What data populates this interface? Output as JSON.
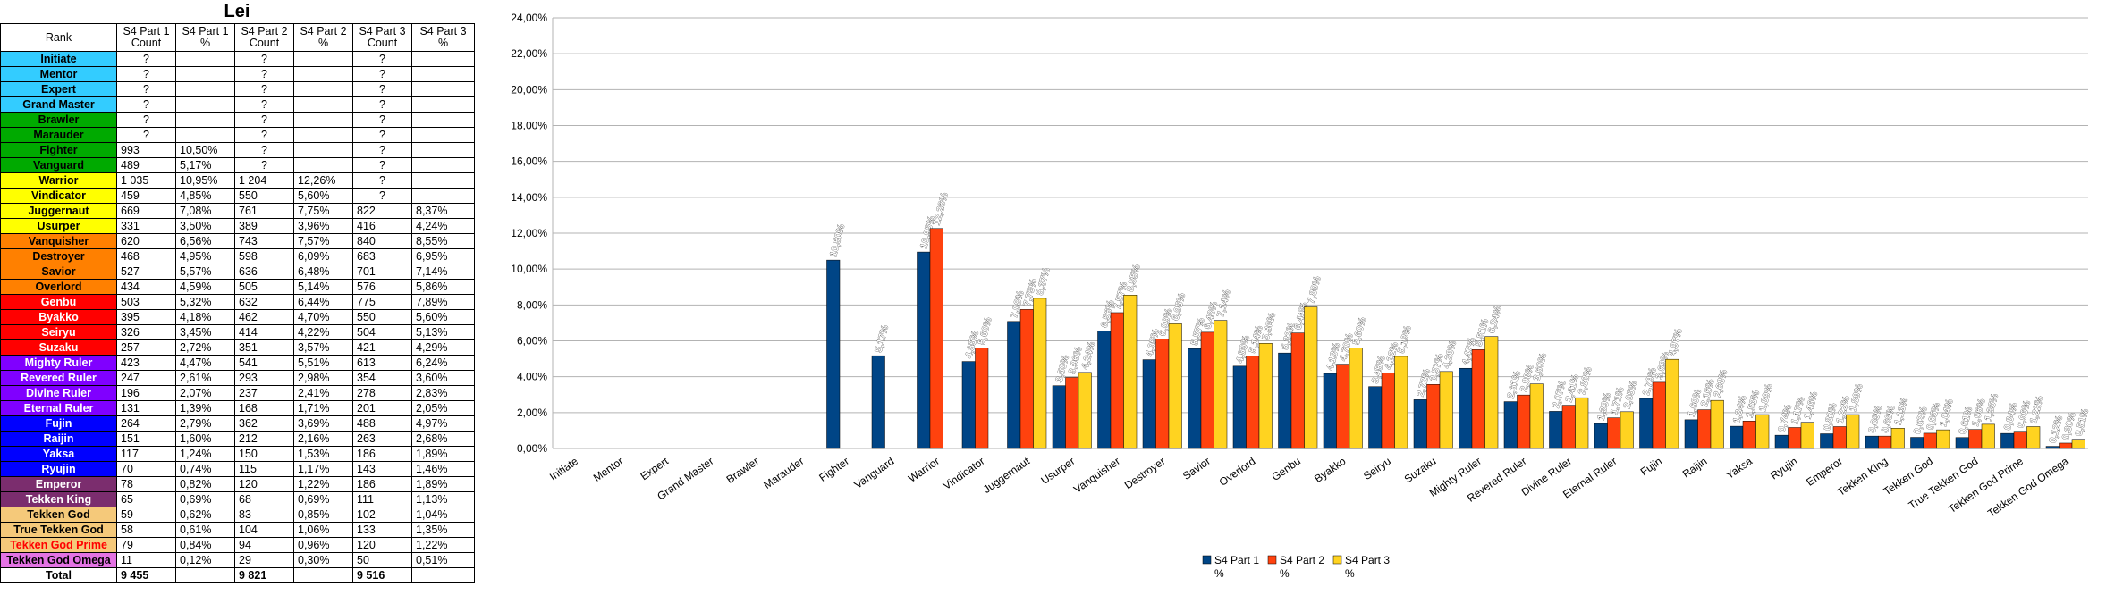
{
  "sheet": {
    "title": "Lei",
    "headers": [
      "Rank",
      "S4 Part 1 Count",
      "S4 Part 1 %",
      "S4 Part 2 Count",
      "S4 Part 2 %",
      "S4 Part 3 Count",
      "S4 Part 3 %"
    ],
    "rows": [
      {
        "rank": "Initiate",
        "bg": "#33CCFF",
        "fg": "#000000",
        "p1c": "?",
        "p1p": "",
        "p2c": "?",
        "p2p": "",
        "p3c": "?",
        "p3p": ""
      },
      {
        "rank": "Mentor",
        "bg": "#33CCFF",
        "fg": "#000000",
        "p1c": "?",
        "p1p": "",
        "p2c": "?",
        "p2p": "",
        "p3c": "?",
        "p3p": ""
      },
      {
        "rank": "Expert",
        "bg": "#33CCFF",
        "fg": "#000000",
        "p1c": "?",
        "p1p": "",
        "p2c": "?",
        "p2p": "",
        "p3c": "?",
        "p3p": ""
      },
      {
        "rank": "Grand Master",
        "bg": "#33CCFF",
        "fg": "#000000",
        "p1c": "?",
        "p1p": "",
        "p2c": "?",
        "p2p": "",
        "p3c": "?",
        "p3p": ""
      },
      {
        "rank": "Brawler",
        "bg": "#00AA00",
        "fg": "#000000",
        "p1c": "?",
        "p1p": "",
        "p2c": "?",
        "p2p": "",
        "p3c": "?",
        "p3p": ""
      },
      {
        "rank": "Marauder",
        "bg": "#00AA00",
        "fg": "#000000",
        "p1c": "?",
        "p1p": "",
        "p2c": "?",
        "p2p": "",
        "p3c": "?",
        "p3p": ""
      },
      {
        "rank": "Fighter",
        "bg": "#00AA00",
        "fg": "#000000",
        "p1c": "993",
        "p1p": "10,50%",
        "p2c": "?",
        "p2p": "",
        "p3c": "?",
        "p3p": ""
      },
      {
        "rank": "Vanguard",
        "bg": "#00AA00",
        "fg": "#000000",
        "p1c": "489",
        "p1p": "5,17%",
        "p2c": "?",
        "p2p": "",
        "p3c": "?",
        "p3p": ""
      },
      {
        "rank": "Warrior",
        "bg": "#FFFF00",
        "fg": "#000000",
        "p1c": "1 035",
        "p1p": "10,95%",
        "p2c": "1 204",
        "p2p": "12,26%",
        "p3c": "?",
        "p3p": ""
      },
      {
        "rank": "Vindicator",
        "bg": "#FFFF00",
        "fg": "#000000",
        "p1c": "459",
        "p1p": "4,85%",
        "p2c": "550",
        "p2p": "5,60%",
        "p3c": "?",
        "p3p": ""
      },
      {
        "rank": "Juggernaut",
        "bg": "#FFFF00",
        "fg": "#000000",
        "p1c": "669",
        "p1p": "7,08%",
        "p2c": "761",
        "p2p": "7,75%",
        "p3c": "822",
        "p3p": "8,37%"
      },
      {
        "rank": "Usurper",
        "bg": "#FFFF00",
        "fg": "#000000",
        "p1c": "331",
        "p1p": "3,50%",
        "p2c": "389",
        "p2p": "3,96%",
        "p3c": "416",
        "p3p": "4,24%"
      },
      {
        "rank": "Vanquisher",
        "bg": "#FF8000",
        "fg": "#000000",
        "p1c": "620",
        "p1p": "6,56%",
        "p2c": "743",
        "p2p": "7,57%",
        "p3c": "840",
        "p3p": "8,55%"
      },
      {
        "rank": "Destroyer",
        "bg": "#FF8000",
        "fg": "#000000",
        "p1c": "468",
        "p1p": "4,95%",
        "p2c": "598",
        "p2p": "6,09%",
        "p3c": "683",
        "p3p": "6,95%"
      },
      {
        "rank": "Savior",
        "bg": "#FF8000",
        "fg": "#000000",
        "p1c": "527",
        "p1p": "5,57%",
        "p2c": "636",
        "p2p": "6,48%",
        "p3c": "701",
        "p3p": "7,14%"
      },
      {
        "rank": "Overlord",
        "bg": "#FF8000",
        "fg": "#000000",
        "p1c": "434",
        "p1p": "4,59%",
        "p2c": "505",
        "p2p": "5,14%",
        "p3c": "576",
        "p3p": "5,86%"
      },
      {
        "rank": "Genbu",
        "bg": "#FF0000",
        "fg": "#FFFFFF",
        "p1c": "503",
        "p1p": "5,32%",
        "p2c": "632",
        "p2p": "6,44%",
        "p3c": "775",
        "p3p": "7,89%"
      },
      {
        "rank": "Byakko",
        "bg": "#FF0000",
        "fg": "#FFFFFF",
        "p1c": "395",
        "p1p": "4,18%",
        "p2c": "462",
        "p2p": "4,70%",
        "p3c": "550",
        "p3p": "5,60%"
      },
      {
        "rank": "Seiryu",
        "bg": "#FF0000",
        "fg": "#FFFFFF",
        "p1c": "326",
        "p1p": "3,45%",
        "p2c": "414",
        "p2p": "4,22%",
        "p3c": "504",
        "p3p": "5,13%"
      },
      {
        "rank": "Suzaku",
        "bg": "#FF0000",
        "fg": "#FFFFFF",
        "p1c": "257",
        "p1p": "2,72%",
        "p2c": "351",
        "p2p": "3,57%",
        "p3c": "421",
        "p3p": "4,29%"
      },
      {
        "rank": "Mighty Ruler",
        "bg": "#8000FF",
        "fg": "#FFFFFF",
        "p1c": "423",
        "p1p": "4,47%",
        "p2c": "541",
        "p2p": "5,51%",
        "p3c": "613",
        "p3p": "6,24%"
      },
      {
        "rank": "Revered Ruler",
        "bg": "#8000FF",
        "fg": "#FFFFFF",
        "p1c": "247",
        "p1p": "2,61%",
        "p2c": "293",
        "p2p": "2,98%",
        "p3c": "354",
        "p3p": "3,60%"
      },
      {
        "rank": "Divine Ruler",
        "bg": "#8000FF",
        "fg": "#FFFFFF",
        "p1c": "196",
        "p1p": "2,07%",
        "p2c": "237",
        "p2p": "2,41%",
        "p3c": "278",
        "p3p": "2,83%"
      },
      {
        "rank": "Eternal Ruler",
        "bg": "#8000FF",
        "fg": "#FFFFFF",
        "p1c": "131",
        "p1p": "1,39%",
        "p2c": "168",
        "p2p": "1,71%",
        "p3c": "201",
        "p3p": "2,05%"
      },
      {
        "rank": "Fujin",
        "bg": "#0000FF",
        "fg": "#FFFFFF",
        "p1c": "264",
        "p1p": "2,79%",
        "p2c": "362",
        "p2p": "3,69%",
        "p3c": "488",
        "p3p": "4,97%"
      },
      {
        "rank": "Raijin",
        "bg": "#0000FF",
        "fg": "#FFFFFF",
        "p1c": "151",
        "p1p": "1,60%",
        "p2c": "212",
        "p2p": "2,16%",
        "p3c": "263",
        "p3p": "2,68%"
      },
      {
        "rank": "Yaksa",
        "bg": "#0000FF",
        "fg": "#FFFFFF",
        "p1c": "117",
        "p1p": "1,24%",
        "p2c": "150",
        "p2p": "1,53%",
        "p3c": "186",
        "p3p": "1,89%"
      },
      {
        "rank": "Ryujin",
        "bg": "#0000FF",
        "fg": "#FFFFFF",
        "p1c": "70",
        "p1p": "0,74%",
        "p2c": "115",
        "p2p": "1,17%",
        "p3c": "143",
        "p3p": "1,46%"
      },
      {
        "rank": "Emperor",
        "bg": "#7B2D6E",
        "fg": "#FFFFFF",
        "p1c": "78",
        "p1p": "0,82%",
        "p2c": "120",
        "p2p": "1,22%",
        "p3c": "186",
        "p3p": "1,89%"
      },
      {
        "rank": "Tekken King",
        "bg": "#7B2D6E",
        "fg": "#FFFFFF",
        "p1c": "65",
        "p1p": "0,69%",
        "p2c": "68",
        "p2p": "0,69%",
        "p3c": "111",
        "p3p": "1,13%"
      },
      {
        "rank": "Tekken God",
        "bg": "#F5C97A",
        "fg": "#000000",
        "p1c": "59",
        "p1p": "0,62%",
        "p2c": "83",
        "p2p": "0,85%",
        "p3c": "102",
        "p3p": "1,04%"
      },
      {
        "rank": "True Tekken God",
        "bg": "#F5C97A",
        "fg": "#000000",
        "p1c": "58",
        "p1p": "0,61%",
        "p2c": "104",
        "p2p": "1,06%",
        "p3c": "133",
        "p3p": "1,35%"
      },
      {
        "rank": "Tekken God Prime",
        "bg": "#F5C97A",
        "fg": "#FF0000",
        "p1c": "79",
        "p1p": "0,84%",
        "p2c": "94",
        "p2p": "0,96%",
        "p3c": "120",
        "p3p": "1,22%"
      },
      {
        "rank": "Tekken God Omega",
        "bg": "#E373E3",
        "fg": "#000000",
        "p1c": "11",
        "p1p": "0,12%",
        "p2c": "29",
        "p2p": "0,30%",
        "p3c": "50",
        "p3p": "0,51%"
      }
    ],
    "total": {
      "rank": "Total",
      "p1c": "9 455",
      "p1p": "",
      "p2c": "9 821",
      "p2p": "",
      "p3c": "9 516",
      "p3p": ""
    }
  },
  "chart_data": {
    "type": "bar",
    "categories": [
      "Initiate",
      "Mentor",
      "Expert",
      "Grand Master",
      "Brawler",
      "Marauder",
      "Fighter",
      "Vanguard",
      "Warrior",
      "Vindicator",
      "Juggernaut",
      "Usurper",
      "Vanquisher",
      "Destroyer",
      "Savior",
      "Overlord",
      "Genbu",
      "Byakko",
      "Seiryu",
      "Suzaku",
      "Mighty Ruler",
      "Revered Ruler",
      "Divine Ruler",
      "Eternal Ruler",
      "Fujin",
      "Raijin",
      "Yaksa",
      "Ryujin",
      "Emperor",
      "Tekken King",
      "Tekken God",
      "True Tekken God",
      "Tekken God Prime",
      "Tekken God Omega"
    ],
    "series": [
      {
        "name": "S4 Part 1 %",
        "color": "#004586",
        "values": [
          null,
          null,
          null,
          null,
          null,
          null,
          10.5,
          5.17,
          10.95,
          4.85,
          7.08,
          3.5,
          6.56,
          4.95,
          5.57,
          4.59,
          5.32,
          4.18,
          3.45,
          2.72,
          4.47,
          2.61,
          2.07,
          1.39,
          2.79,
          1.6,
          1.24,
          0.74,
          0.82,
          0.69,
          0.62,
          0.61,
          0.84,
          0.12
        ]
      },
      {
        "name": "S4 Part 2 %",
        "color": "#FF420E",
        "values": [
          null,
          null,
          null,
          null,
          null,
          null,
          null,
          null,
          12.26,
          5.6,
          7.75,
          3.96,
          7.57,
          6.09,
          6.48,
          5.14,
          6.44,
          4.7,
          4.22,
          3.57,
          5.51,
          2.98,
          2.41,
          1.71,
          3.69,
          2.16,
          1.53,
          1.17,
          1.22,
          0.69,
          0.85,
          1.06,
          0.96,
          0.3
        ]
      },
      {
        "name": "S4 Part 3 %",
        "color": "#FFD320",
        "values": [
          null,
          null,
          null,
          null,
          null,
          null,
          null,
          null,
          null,
          null,
          8.37,
          4.24,
          8.55,
          6.95,
          7.14,
          5.86,
          7.89,
          5.6,
          5.13,
          4.29,
          6.24,
          3.6,
          2.83,
          2.05,
          4.97,
          2.68,
          1.89,
          1.46,
          1.89,
          1.13,
          1.04,
          1.35,
          1.22,
          0.51
        ]
      }
    ],
    "ylim": [
      0,
      24
    ],
    "yticks": [
      "0,00%",
      "2,00%",
      "4,00%",
      "6,00%",
      "8,00%",
      "10,00%",
      "12,00%",
      "14,00%",
      "16,00%",
      "18,00%",
      "20,00%",
      "22,00%",
      "24,00%"
    ],
    "grid": true,
    "legend_position": "bottom",
    "legend": [
      {
        "line1": "S4 Part 1",
        "line2": "%"
      },
      {
        "line1": "S4 Part 2",
        "line2": "%"
      },
      {
        "line1": "S4 Part 3",
        "line2": "%"
      }
    ]
  }
}
